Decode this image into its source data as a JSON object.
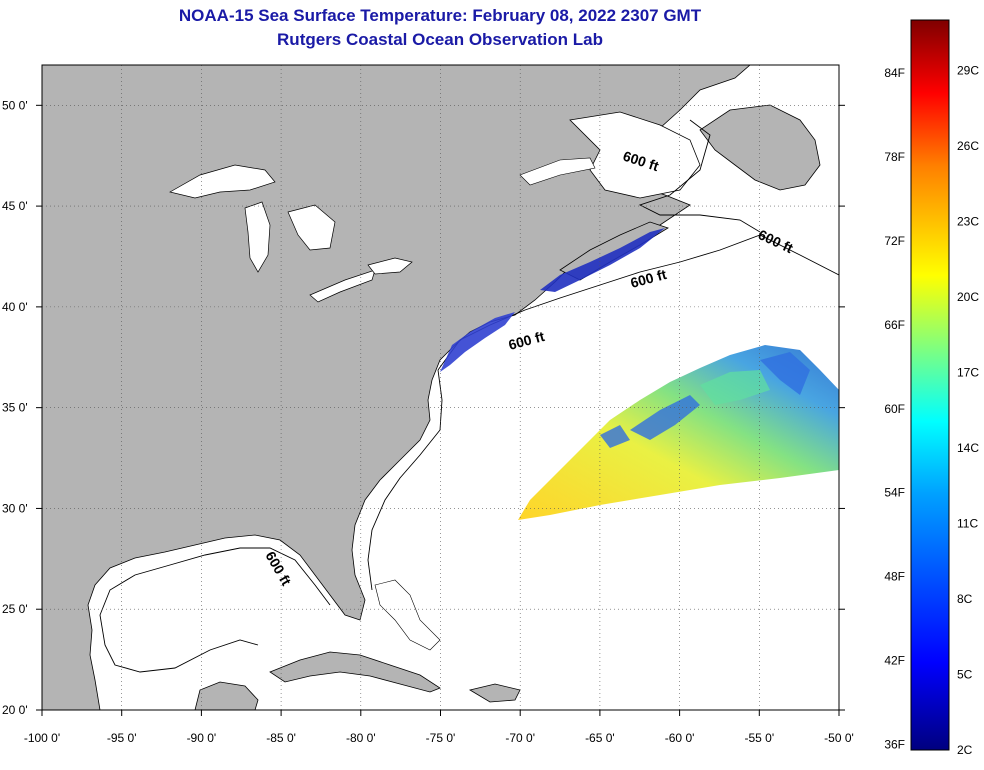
{
  "title": "NOAA-15 Sea Surface Temperature:  February 08, 2022 2307 GMT",
  "subtitle": "Rutgers Coastal Ocean Observation Lab",
  "map": {
    "lon_ticks": [
      "-100 0'",
      "-95 0'",
      "-90 0'",
      "-85 0'",
      "-80 0'",
      "-75 0'",
      "-70 0'",
      "-65 0'",
      "-60 0'",
      "-55 0'",
      "-50 0'"
    ],
    "lat_ticks": [
      "20 0'",
      "25 0'",
      "30 0'",
      "35 0'",
      "40 0'",
      "45 0'",
      "50 0'"
    ],
    "lon_range": [
      -100,
      -50
    ],
    "lat_range": [
      20,
      52
    ],
    "land_color": "#b4b4b4",
    "ocean_color": "#ffffff",
    "grid": "dotted",
    "isobath_labels": [
      "600 ft",
      "600 ft",
      "600 ft",
      "600 ft",
      "600 ft"
    ]
  },
  "colorbar": {
    "f_labels": [
      "84F",
      "78F",
      "72F",
      "66F",
      "60F",
      "54F",
      "48F",
      "42F",
      "36F"
    ],
    "c_labels": [
      "29C",
      "26C",
      "23C",
      "20C",
      "17C",
      "14C",
      "11C",
      "8C",
      "5C",
      "2C"
    ],
    "range_c": [
      2,
      31
    ]
  }
}
